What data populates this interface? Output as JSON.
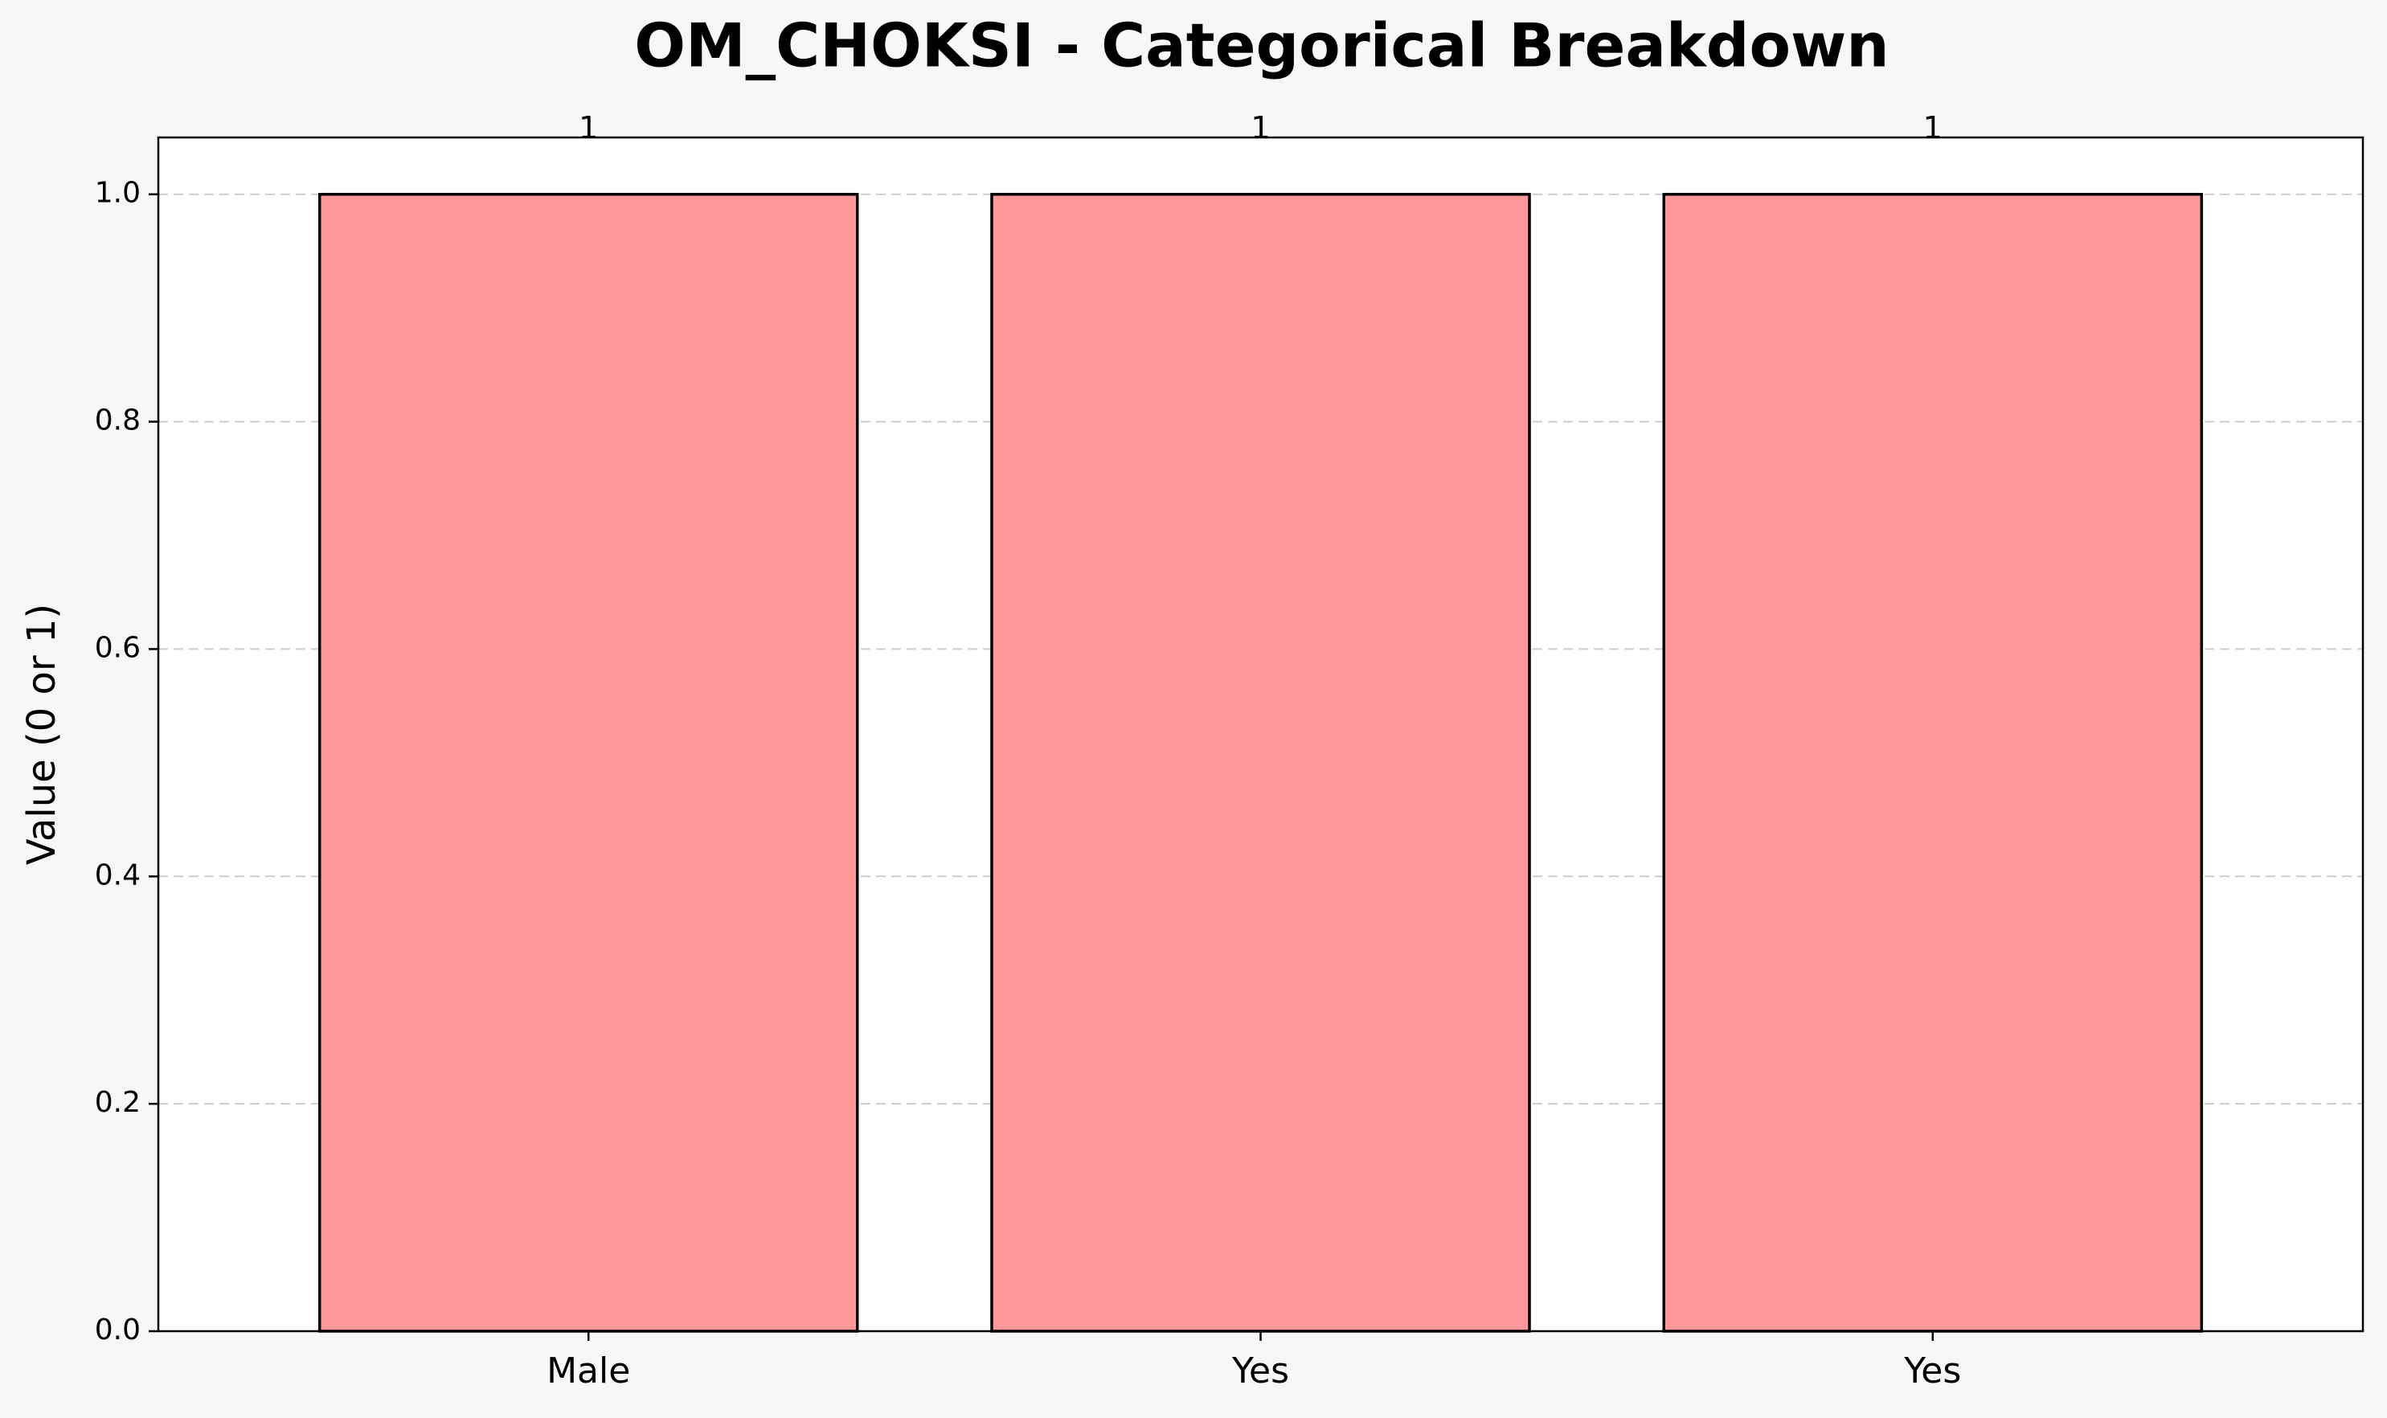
{
  "chart_data": {
    "type": "bar",
    "title": "OM_CHOKSI - Categorical Breakdown",
    "xlabel": "",
    "ylabel": "Value (0 or 1)",
    "categories": [
      "Male",
      "Yes",
      "Yes"
    ],
    "values": [
      1,
      1,
      1
    ],
    "data_labels": [
      "1",
      "1",
      "1"
    ],
    "ylim": [
      0,
      1.05
    ],
    "yticks": [
      0.0,
      0.2,
      0.4,
      0.6,
      0.8,
      1.0
    ],
    "ytick_labels": [
      "0.0",
      "0.2",
      "0.4",
      "0.6",
      "0.8",
      "1.0"
    ],
    "grid": {
      "y": true,
      "x": false,
      "style": "dashed"
    },
    "legend": "none",
    "colors": {
      "bar_fill": "#ff9999",
      "bar_edge": "#000000",
      "grid": "#cccccc",
      "plot_background": "#ffffff",
      "figure_background": "#f7f7f7"
    }
  }
}
